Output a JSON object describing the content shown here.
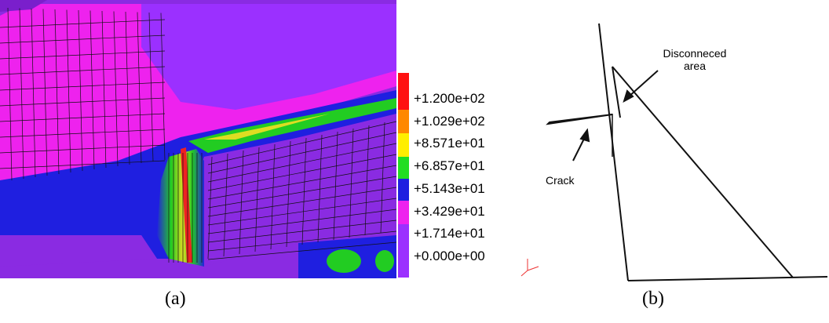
{
  "panel_a": {
    "legend_labels": [
      "+1.200e+02",
      "+1.029e+02",
      "+8.571e+01",
      "+6.857e+01",
      "+5.143e+01",
      "+3.429e+01",
      "+1.714e+01",
      "+0.000e+00"
    ],
    "caption": "(a)"
  },
  "panel_b": {
    "annotations": [
      "Disconneced area",
      "Crack"
    ],
    "caption": "(b)"
  }
}
